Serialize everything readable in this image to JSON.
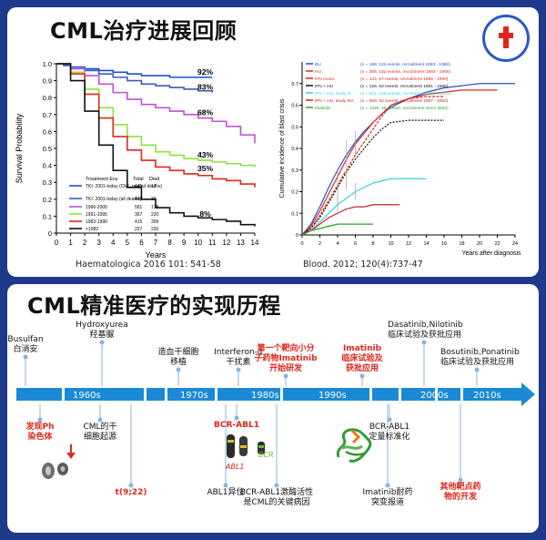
{
  "top": {
    "title": "CML治疗进展回顾",
    "left_chart": {
      "type": "line",
      "ylabel": "Survival Probability",
      "xlabel": "Years",
      "x_ticks": [
        "0",
        "1",
        "2",
        "3",
        "4",
        "5",
        "6",
        "7",
        "8",
        "9",
        "10",
        "11",
        "12",
        "13",
        "14"
      ],
      "y_ticks": [
        "0",
        "0.1",
        "0.2",
        "0.3",
        "0.4",
        "0.5",
        "0.6",
        "0.7",
        "0.8",
        "0.9",
        "1.0"
      ],
      "xlim": [
        0,
        14
      ],
      "ylim": [
        0,
        1
      ],
      "end_labels": [
        "92%",
        "83%",
        "68%",
        "43%",
        "35%",
        "8%"
      ],
      "legend_header": [
        "Treatment Era",
        "Total",
        "Died"
      ],
      "legend_rows": [
        {
          "label": "TKI: 2001-today (CML-related deaths)",
          "total": "445",
          "died": "17",
          "color": "#1f4fd1"
        },
        {
          "label": "TKI: 2001-today (all deaths)",
          "total": "445",
          "died": "39",
          "color": "#3b5bbd"
        },
        {
          "label": "1996-2000",
          "total": "581",
          "died": "178",
          "color": "#c24fd6"
        },
        {
          "label": "1991-1995",
          "total": "367",
          "died": "220",
          "color": "#8fe03a"
        },
        {
          "label": "1983-1990",
          "total": "415",
          "died": "309",
          "color": "#e0261b"
        },
        {
          "label": "<1982",
          "total": "227",
          "died": "220",
          "color": "#111111"
        }
      ],
      "series": [
        {
          "name": "TKI CML-related",
          "color": "#1f4fd1",
          "x": [
            0,
            0.5,
            1,
            2,
            3,
            4,
            5,
            6,
            7,
            8,
            9,
            10,
            11
          ],
          "y": [
            1,
            0.99,
            0.98,
            0.97,
            0.96,
            0.95,
            0.94,
            0.93,
            0.93,
            0.92,
            0.92,
            0.92,
            0.92
          ]
        },
        {
          "name": "TKI all deaths",
          "color": "#3b5bbd",
          "x": [
            0,
            1,
            2,
            3,
            4,
            5,
            6,
            7,
            8,
            9,
            10,
            11
          ],
          "y": [
            1,
            0.98,
            0.96,
            0.94,
            0.92,
            0.9,
            0.88,
            0.87,
            0.86,
            0.85,
            0.84,
            0.83
          ]
        },
        {
          "name": "1996-2000",
          "color": "#c24fd6",
          "x": [
            0,
            1,
            2,
            3,
            4,
            5,
            6,
            7,
            8,
            9,
            10,
            11,
            12,
            13,
            14
          ],
          "y": [
            1,
            0.97,
            0.93,
            0.88,
            0.83,
            0.79,
            0.76,
            0.74,
            0.72,
            0.7,
            0.68,
            0.66,
            0.63,
            0.58,
            0.53
          ]
        },
        {
          "name": "1991-1995",
          "color": "#8fe03a",
          "x": [
            0,
            1,
            2,
            3,
            4,
            5,
            6,
            7,
            8,
            9,
            10,
            11,
            12,
            13,
            14
          ],
          "y": [
            1,
            0.95,
            0.85,
            0.74,
            0.64,
            0.57,
            0.52,
            0.48,
            0.46,
            0.44,
            0.43,
            0.42,
            0.41,
            0.4,
            0.39
          ]
        },
        {
          "name": "1983-1990",
          "color": "#e0261b",
          "x": [
            0,
            1,
            2,
            3,
            4,
            5,
            6,
            7,
            8,
            9,
            10,
            11,
            12,
            13,
            14
          ],
          "y": [
            1,
            0.94,
            0.82,
            0.68,
            0.57,
            0.49,
            0.43,
            0.39,
            0.37,
            0.35,
            0.34,
            0.32,
            0.31,
            0.29,
            0.27
          ]
        },
        {
          "name": "<1982",
          "color": "#111111",
          "x": [
            0,
            1,
            2,
            3,
            4,
            5,
            6,
            7,
            8,
            9,
            10,
            11,
            12,
            13,
            14
          ],
          "y": [
            1,
            0.9,
            0.72,
            0.52,
            0.37,
            0.27,
            0.2,
            0.15,
            0.12,
            0.1,
            0.09,
            0.08,
            0.07,
            0.05,
            0.04
          ]
        }
      ],
      "citation": "Haematologica 2016 101: 541-58"
    },
    "right_chart": {
      "type": "line",
      "ylabel": "Cumulative incidence of blast crisis",
      "xlabel": "Years after diagnosis",
      "x_ticks": [
        "0",
        "2",
        "4",
        "6",
        "8",
        "10",
        "12",
        "14",
        "16",
        "18",
        "20",
        "22",
        "24"
      ],
      "y_ticks": [
        "0",
        "0.1",
        "0.2",
        "0.3",
        "0.4",
        "0.5",
        "0.6",
        "0.7"
      ],
      "xlim": [
        0,
        24
      ],
      "ylim": [
        0,
        0.8
      ],
      "legend_rows": [
        {
          "label": "BU",
          "stats": "(n = 188, 115 events, recruitment 1983 - 1990)",
          "color": "#1f4fd1"
        },
        {
          "label": "HU",
          "stats": "(n = 308, 182 events, recruitment 1983 - 1990)",
          "color": "#e0261b"
        },
        {
          "label": "IFN mono",
          "stats": "(n = 134, 67 events, recruitment 1986 - 1990)",
          "color": "#e0261b"
        },
        {
          "label": "IFN + HU",
          "stats": "(n = 226, 92 events, recruitment 1991 - 1995)",
          "color": "#111111"
        },
        {
          "label": "IFN + HU, study III",
          "stats": "(n = 521, 148 events, recruitment 1995 - 2001)",
          "color": "#35d0e0"
        },
        {
          "label": "IFN + HU, study IIIA",
          "stats": "(n = 669, 82 events, recruitment 1997 - 2002)",
          "color": "#c0262a"
        },
        {
          "label": "Imatinib",
          "stats": "(n = 1340, 48 events, recruitment since 2002)",
          "color": "#2aa02a"
        }
      ],
      "series": [
        {
          "name": "BU",
          "color": "#1f4fd1",
          "x": [
            0,
            1,
            2,
            3,
            4,
            5,
            6,
            7,
            8,
            9,
            10,
            12,
            14,
            16,
            18,
            20,
            22,
            24
          ],
          "y": [
            0,
            0.05,
            0.13,
            0.22,
            0.3,
            0.37,
            0.43,
            0.48,
            0.52,
            0.56,
            0.59,
            0.63,
            0.66,
            0.68,
            0.69,
            0.7,
            0.7,
            0.7
          ]
        },
        {
          "name": "HU",
          "color": "#e0261b",
          "x": [
            0,
            1,
            2,
            3,
            4,
            5,
            6,
            7,
            8,
            9,
            10,
            12,
            14,
            16,
            18,
            20,
            22
          ],
          "y": [
            0,
            0.04,
            0.11,
            0.19,
            0.27,
            0.35,
            0.42,
            0.47,
            0.52,
            0.56,
            0.6,
            0.63,
            0.65,
            0.66,
            0.67,
            0.67,
            0.67
          ]
        },
        {
          "name": "IFN mono",
          "color": "#e0261b",
          "x": [
            0,
            1,
            2,
            3,
            4,
            5,
            6,
            7,
            8,
            9,
            10,
            12,
            14,
            16
          ],
          "y": [
            0,
            0.03,
            0.09,
            0.16,
            0.23,
            0.3,
            0.37,
            0.43,
            0.49,
            0.55,
            0.6,
            0.63,
            0.64,
            0.64
          ]
        },
        {
          "name": "IFN + HU",
          "color": "#111111",
          "x": [
            0,
            1,
            2,
            3,
            4,
            5,
            6,
            7,
            8,
            9,
            10,
            12,
            14,
            16
          ],
          "y": [
            0,
            0.03,
            0.08,
            0.15,
            0.22,
            0.29,
            0.35,
            0.4,
            0.45,
            0.49,
            0.52,
            0.53,
            0.53,
            0.53
          ]
        },
        {
          "name": "IFN + HU, study III",
          "color": "#35d0e0",
          "x": [
            0,
            1,
            2,
            3,
            4,
            5,
            6,
            7,
            8,
            9,
            10,
            12,
            14
          ],
          "y": [
            0,
            0.02,
            0.06,
            0.1,
            0.14,
            0.17,
            0.2,
            0.22,
            0.24,
            0.25,
            0.26,
            0.26,
            0.26
          ]
        },
        {
          "name": "IFN + HU, study IIIA",
          "color": "#c0262a",
          "x": [
            0,
            1,
            2,
            3,
            4,
            5,
            6,
            7,
            8,
            9,
            10,
            11
          ],
          "y": [
            0,
            0.02,
            0.05,
            0.08,
            0.1,
            0.12,
            0.13,
            0.13,
            0.14,
            0.14,
            0.14,
            0.14
          ]
        },
        {
          "name": "Imatinib",
          "color": "#2aa02a",
          "x": [
            0,
            1,
            2,
            3,
            4,
            5,
            6,
            7,
            8
          ],
          "y": [
            0,
            0.02,
            0.03,
            0.04,
            0.05,
            0.05,
            0.05,
            0.05,
            0.05
          ]
        }
      ],
      "citation": "Blood. 2012; 120(4):737-47"
    }
  },
  "timeline": {
    "title": "CML精准医疗的实现历程",
    "decades": [
      "1960s",
      "1970s",
      "1980s",
      "1990s",
      "2000s",
      "2010s"
    ],
    "events_above": [
      {
        "lines": [
          "Busulfan",
          "白消安"
        ],
        "red": false
      },
      {
        "lines": [
          "Hydroxyurea",
          "羟基脲"
        ],
        "red": false
      },
      {
        "lines": [
          "造血干细胞",
          "移植"
        ],
        "red": false
      },
      {
        "lines": [
          "Interferon-α",
          "干扰素"
        ],
        "red": false
      },
      {
        "lines": [
          "第一个靶向小分",
          "子药物Imatinib",
          "开始研发"
        ],
        "red": true
      },
      {
        "lines": [
          "Imatinib",
          "临床试验及",
          "获批应用"
        ],
        "red": true
      },
      {
        "lines": [
          "Dasatinib,Nilotinib",
          "临床试验及获批应用"
        ],
        "red": false
      },
      {
        "lines": [
          "Bosutinib,Ponatinib",
          "临床试验及获批应用"
        ],
        "red": false
      }
    ],
    "events_below": [
      {
        "lines": [
          "发现Ph",
          "染色体"
        ],
        "red": true
      },
      {
        "lines": [
          "CML的干",
          "细胞起源"
        ],
        "red": false
      },
      {
        "lines": [
          "t(9;22)"
        ],
        "red": true
      },
      {
        "lines": [
          "BCR-ABL1"
        ],
        "red": true
      },
      {
        "lines": [
          "ABL1异位"
        ],
        "red": false
      },
      {
        "lines": [
          "BCR-ABL1激酶活性",
          "是CML的关键病因"
        ],
        "red": false
      },
      {
        "lines": [
          "BCR-ABL1",
          "定量标准化"
        ],
        "red": false
      },
      {
        "lines": [
          "Imatinib耐药",
          "突变报道"
        ],
        "red": false
      },
      {
        "lines": [
          "其他靶点药",
          "物的开发"
        ],
        "red": true
      }
    ],
    "abl1_label": "ABL1",
    "bcr_label": "BCR"
  },
  "colors": {
    "background": "#1f3a8a",
    "arrow": "#1a8ad6",
    "accent_red": "#e0261b"
  }
}
